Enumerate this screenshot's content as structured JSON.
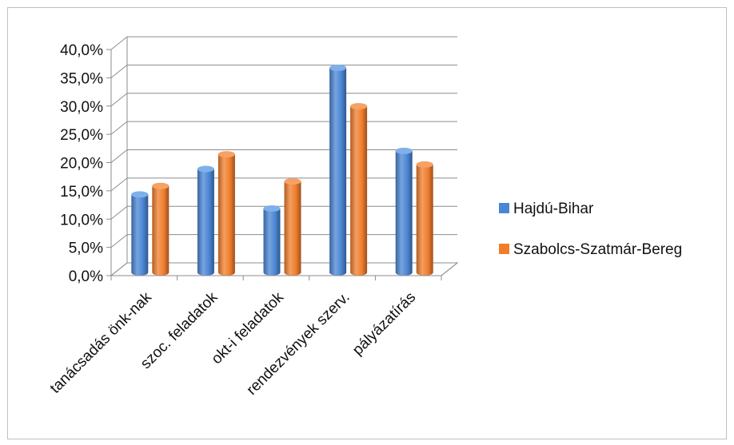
{
  "chart_data": {
    "type": "bar",
    "title": "",
    "xlabel": "",
    "ylabel": "",
    "categories": [
      "tanácsadás önk-nak",
      "szoc. feladatok",
      "okt-i feladatok",
      "rendezvények szerv.",
      "pályázatírás"
    ],
    "series": [
      {
        "name": "Hajdú-Bihar",
        "color": "#4a86d4",
        "values": [
          0.138,
          0.183,
          0.113,
          0.362,
          0.215
        ]
      },
      {
        "name": "Szabolcs-Szatmár-Bereg",
        "color": "#f07d2c",
        "values": [
          0.153,
          0.209,
          0.161,
          0.294,
          0.191
        ]
      }
    ],
    "ylim": [
      0,
      0.4
    ],
    "yticks": [
      "0,0%",
      "5,0%",
      "10,0%",
      "15,0%",
      "20,0%",
      "25,0%",
      "30,0%",
      "35,0%",
      "40,0%"
    ],
    "grid": true,
    "legend_position": "right",
    "style": "3d-cylinder"
  }
}
